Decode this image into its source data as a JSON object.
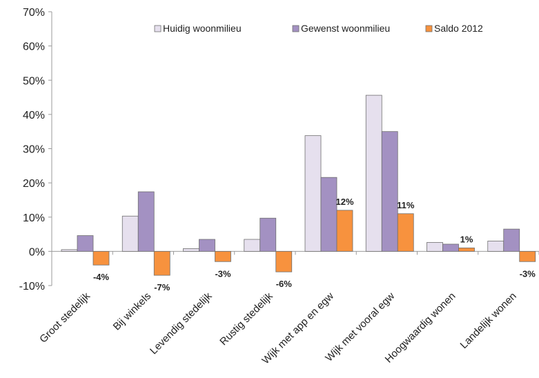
{
  "chart_data": {
    "type": "bar",
    "categories": [
      "Groot stedelijk",
      "Bij winkels",
      "Levendig stedelijk",
      "Rustig stedelijk",
      "Wijk met app en egw",
      "Wijk met vooral egw",
      "Hoogwaardig wonen",
      "Landelijk wonen"
    ],
    "series": [
      {
        "name": "Huidig woonmilieu",
        "color": "#E6E0EE",
        "values": [
          0.5,
          10.3,
          0.8,
          3.5,
          33.8,
          45.6,
          2.6,
          3.0
        ]
      },
      {
        "name": "Gewenst woonmilieu",
        "color": "#A391C2",
        "values": [
          4.6,
          17.4,
          3.5,
          9.7,
          21.6,
          35.0,
          2.1,
          6.5
        ]
      },
      {
        "name": "Saldo 2012",
        "color": "#F7923E",
        "values": [
          -4,
          -7,
          -3,
          -6,
          12,
          11,
          1,
          -3
        ]
      }
    ],
    "data_labels": [
      "-4%",
      "-7%",
      "-3%",
      "-6%",
      "12%",
      "11%",
      "1%",
      "-3%"
    ],
    "ylim": [
      -10,
      70
    ],
    "yticks": [
      -10,
      0,
      10,
      20,
      30,
      40,
      50,
      60,
      70
    ],
    "ytick_labels": [
      "-10%",
      "0%",
      "10%",
      "20%",
      "30%",
      "40%",
      "50%",
      "60%",
      "70%"
    ],
    "grid": false,
    "legend_position": "top"
  }
}
